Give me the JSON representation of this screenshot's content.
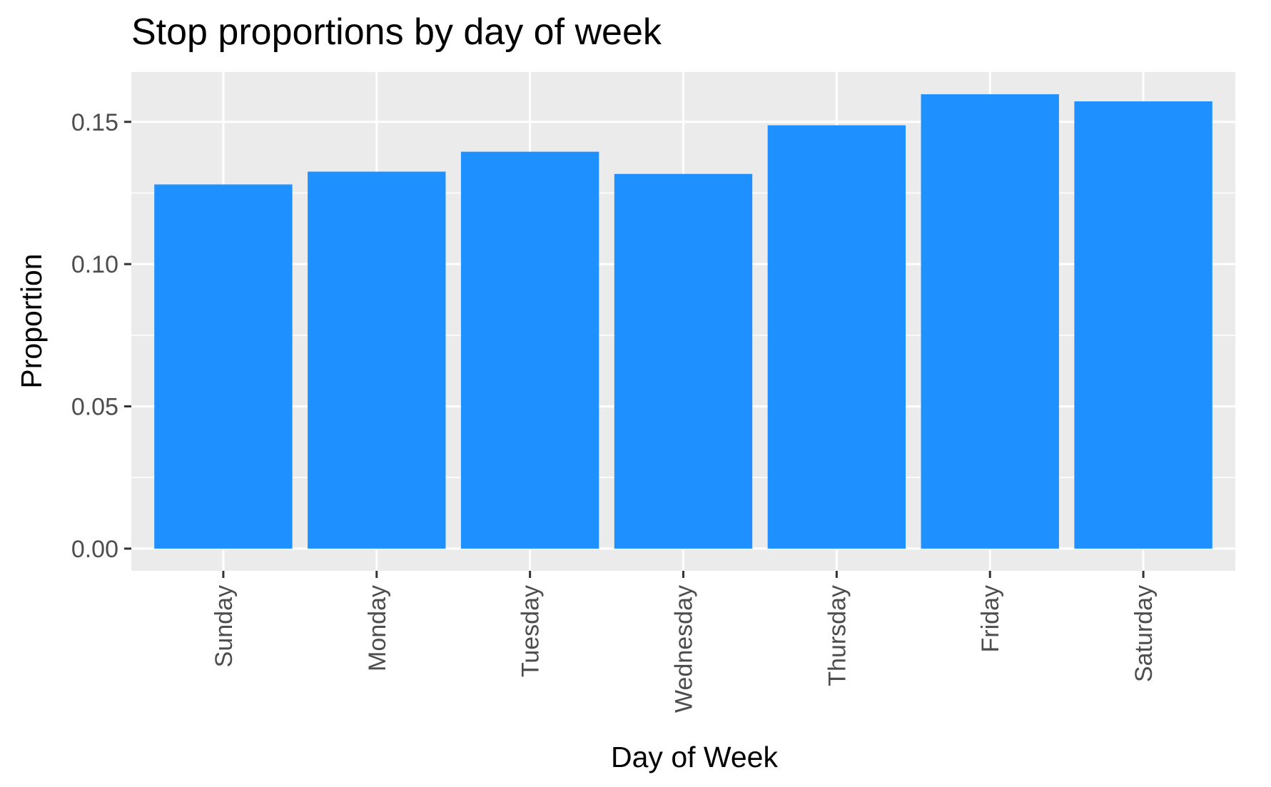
{
  "chart_data": {
    "type": "bar",
    "title": "Stop proportions by day of week",
    "xlabel": "Day of Week",
    "ylabel": "Proportion",
    "categories": [
      "Sunday",
      "Monday",
      "Tuesday",
      "Wednesday",
      "Thursday",
      "Friday",
      "Saturday"
    ],
    "values": [
      0.128,
      0.1325,
      0.1395,
      0.1317,
      0.1488,
      0.1597,
      0.1572
    ],
    "ylim": [
      -0.0078,
      0.1675
    ],
    "yticks": [
      0.0,
      0.05,
      0.1,
      0.15
    ],
    "ytick_labels": [
      "0.00",
      "0.05",
      "0.10",
      "0.15"
    ],
    "grid": true,
    "legend": "none",
    "colors": {
      "bar": "#1E90FF",
      "panel_background": "#EBEBEB",
      "grid": "#FFFFFF",
      "tick_text": "#4D4D4D",
      "tick_mark": "#333333"
    }
  }
}
